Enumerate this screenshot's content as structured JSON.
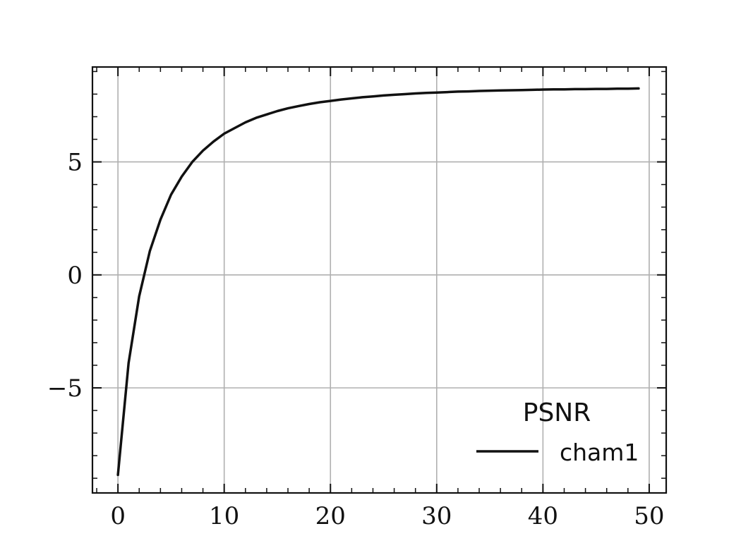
{
  "chart_data": {
    "type": "line",
    "title": "",
    "xlabel": "",
    "ylabel": "",
    "xlim": [
      -2.4,
      51.6
    ],
    "ylim": [
      -9.65,
      9.2
    ],
    "xticks": [
      0,
      10,
      20,
      30,
      40,
      50
    ],
    "yticks": [
      -5,
      0,
      5
    ],
    "xtick_labels": [
      "0",
      "10",
      "20",
      "30",
      "40",
      "50"
    ],
    "ytick_labels": [
      "−5",
      "0",
      "5"
    ],
    "grid": true,
    "legend": {
      "title": "PSNR",
      "placement": "lower-right"
    },
    "line_color": "#111111",
    "grid_color": "#b0b0b0",
    "series": [
      {
        "name": "cham1",
        "x": [
          0,
          1,
          2,
          3,
          4,
          5,
          6,
          7,
          8,
          9,
          10,
          11,
          12,
          13,
          14,
          15,
          16,
          17,
          18,
          19,
          20,
          21,
          22,
          23,
          24,
          25,
          26,
          27,
          28,
          29,
          30,
          31,
          32,
          33,
          34,
          35,
          36,
          37,
          38,
          39,
          40,
          41,
          42,
          43,
          44,
          45,
          46,
          47,
          48,
          49
        ],
        "y": [
          -8.85,
          -3.9,
          -0.95,
          1.05,
          2.45,
          3.55,
          4.35,
          5.0,
          5.5,
          5.9,
          6.25,
          6.5,
          6.75,
          6.95,
          7.1,
          7.25,
          7.37,
          7.47,
          7.56,
          7.64,
          7.7,
          7.76,
          7.81,
          7.86,
          7.9,
          7.94,
          7.97,
          8.0,
          8.03,
          8.05,
          8.07,
          8.09,
          8.11,
          8.12,
          8.14,
          8.15,
          8.16,
          8.17,
          8.18,
          8.19,
          8.2,
          8.21,
          8.21,
          8.22,
          8.22,
          8.23,
          8.23,
          8.24,
          8.24,
          8.25
        ]
      }
    ]
  }
}
